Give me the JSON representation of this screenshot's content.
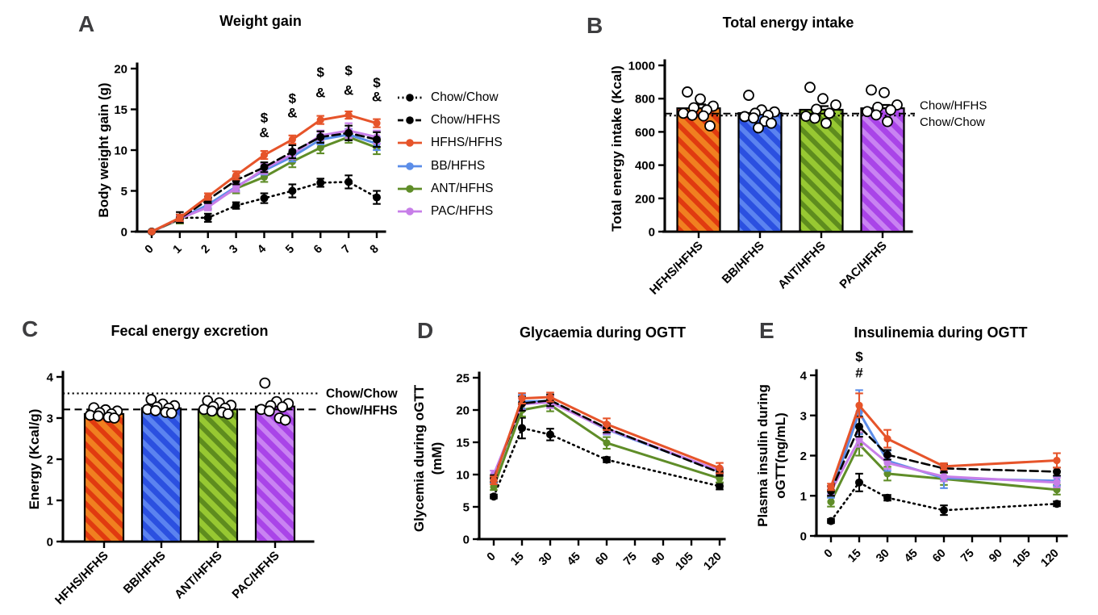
{
  "panel_letters": [
    "A",
    "B",
    "C",
    "D",
    "E"
  ],
  "colors": {
    "black": "#000000",
    "hfhs_orange": "#E6542A",
    "bb_blue": "#5B8DE8",
    "ant_green": "#5F8D28",
    "pac_purple": "#C77EE8"
  },
  "legend": {
    "position": "right",
    "items": [
      "Chow/Chow",
      "Chow/HFHS",
      "HFHS/HFHS",
      "BB/HFHS",
      "ANT/HFHS",
      "PAC/HFHS"
    ]
  },
  "chart_data": [
    {
      "id": "A",
      "type": "line",
      "title": "Weight gain",
      "ylabel": "Body weight gain (g)",
      "ylim": [
        0,
        20
      ],
      "yticks": [
        0,
        5,
        10,
        15,
        20
      ],
      "x": [
        0,
        1,
        2,
        3,
        4,
        5,
        6,
        7,
        8
      ],
      "xticks": [
        0,
        1,
        2,
        3,
        4,
        5,
        6,
        7,
        8
      ],
      "draw_order": [
        0,
        4,
        3,
        5,
        1,
        2
      ],
      "series": [
        {
          "name": "Chow/Chow",
          "color": "#000000",
          "dash": "dotted",
          "values": [
            0,
            1.7,
            1.7,
            3.2,
            4.1,
            5.0,
            6.0,
            6.1,
            4.2
          ],
          "err": [
            0.1,
            0.7,
            0.5,
            0.4,
            0.6,
            0.8,
            0.5,
            0.8,
            0.8
          ]
        },
        {
          "name": "Chow/HFHS",
          "color": "#000000",
          "dash": "dashed",
          "values": [
            0,
            1.6,
            3.9,
            6.3,
            7.9,
            9.8,
            11.6,
            12.1,
            11.3
          ],
          "err": [
            0.1,
            0.5,
            0.4,
            0.5,
            0.6,
            0.8,
            0.7,
            0.9,
            0.9
          ]
        },
        {
          "name": "HFHS/HFHS",
          "color": "#E6542A",
          "dash": "solid",
          "values": [
            0,
            1.7,
            4.3,
            6.9,
            9.4,
            11.3,
            13.7,
            14.3,
            13.3
          ],
          "err": [
            0.1,
            0.4,
            0.4,
            0.5,
            0.5,
            0.5,
            0.5,
            0.45,
            0.5
          ]
        },
        {
          "name": "BB/HFHS",
          "color": "#5B8DE8",
          "dash": "solid",
          "values": [
            0,
            1.6,
            3.3,
            5.5,
            7.5,
            9.2,
            11.3,
            11.9,
            10.8
          ],
          "err": [
            0.1,
            0.4,
            0.4,
            0.5,
            0.5,
            0.6,
            0.6,
            0.7,
            0.8
          ]
        },
        {
          "name": "ANT/HFHS",
          "color": "#5F8D28",
          "dash": "solid",
          "values": [
            0,
            1.5,
            3.2,
            5.3,
            6.7,
            8.6,
            10.3,
            11.6,
            10.3
          ],
          "err": [
            0.1,
            0.5,
            0.4,
            0.6,
            0.6,
            0.7,
            0.7,
            0.7,
            0.8
          ]
        },
        {
          "name": "PAC/HFHS",
          "color": "#C77EE8",
          "dash": "solid",
          "values": [
            0,
            1.6,
            3.0,
            5.4,
            7.7,
            9.5,
            11.8,
            12.4,
            11.6
          ],
          "err": [
            0.1,
            0.4,
            0.4,
            0.5,
            0.6,
            0.6,
            0.6,
            0.9,
            0.8
          ]
        }
      ],
      "annotations": [
        {
          "x": 4,
          "y": 13.4,
          "text": "$"
        },
        {
          "x": 4,
          "y": 11.6,
          "text": "&"
        },
        {
          "x": 5,
          "y": 15.8,
          "text": "$"
        },
        {
          "x": 5,
          "y": 14.0,
          "text": "&"
        },
        {
          "x": 6,
          "y": 19.0,
          "text": "$"
        },
        {
          "x": 6,
          "y": 16.5,
          "text": "&"
        },
        {
          "x": 7,
          "y": 19.2,
          "text": "$"
        },
        {
          "x": 7,
          "y": 16.8,
          "text": "&"
        },
        {
          "x": 8,
          "y": 17.7,
          "text": "$"
        },
        {
          "x": 8,
          "y": 16.0,
          "text": "&"
        }
      ]
    },
    {
      "id": "B",
      "type": "bar",
      "title": "Total energy intake",
      "ylabel": "Total energy intake (Kcal)",
      "ylim": [
        0,
        1000
      ],
      "yticks": [
        0,
        200,
        400,
        600,
        800,
        1000
      ],
      "categories": [
        "HFHS/HFHS",
        "BB/HFHS",
        "ANT/HFHS",
        "PAC/HFHS"
      ],
      "values": [
        742,
        713,
        733,
        742
      ],
      "errors": [
        23,
        13,
        22,
        20
      ],
      "bar_colors": [
        {
          "base": "#F08020",
          "stripe": "#E03A10"
        },
        {
          "base": "#2B50E0",
          "stripe": "#5B83F0"
        },
        {
          "base": "#97C832",
          "stripe": "#5E8C1E"
        },
        {
          "base": "#A944E8",
          "stripe": "#C983F2"
        }
      ],
      "scatter": [
        [
          840,
          798,
          755,
          745,
          732,
          712,
          700,
          696,
          636
        ],
        [
          820,
          732,
          720,
          712,
          700,
          692,
          684,
          664,
          652,
          624
        ],
        [
          868,
          800,
          762,
          736,
          712,
          694,
          682,
          652
        ],
        [
          852,
          836,
          762,
          748,
          732,
          722,
          702,
          662
        ]
      ],
      "ref_lines": [
        {
          "label": "Chow/HFHS",
          "value": 710,
          "style": "dashed",
          "label_dy": -5
        },
        {
          "label": "Chow/Chow",
          "value": 698,
          "style": "dotted",
          "label_dy": 13
        }
      ],
      "ref_label_bold": false
    },
    {
      "id": "C",
      "type": "bar",
      "title": "Fecal energy excretion",
      "ylabel": "Energy (Kcal/g)",
      "ylim": [
        0,
        4
      ],
      "yticks": [
        0,
        1,
        2,
        3,
        4
      ],
      "categories": [
        "HFHS/HFHS",
        "BB/HFHS",
        "ANT/HFHS",
        "PAC/HFHS"
      ],
      "values": [
        3.1,
        3.24,
        3.21,
        3.28
      ],
      "errors": [
        0.03,
        0.04,
        0.05,
        0.07
      ],
      "bar_colors": [
        {
          "base": "#F08020",
          "stripe": "#E03A10"
        },
        {
          "base": "#2B50E0",
          "stripe": "#5B83F0"
        },
        {
          "base": "#97C832",
          "stripe": "#5E8C1E"
        },
        {
          "base": "#A944E8",
          "stripe": "#C983F2"
        }
      ],
      "scatter": [
        [
          3.25,
          3.2,
          3.17,
          3.13,
          3.1,
          3.07,
          3.05,
          3.02,
          3.0
        ],
        [
          3.45,
          3.34,
          3.3,
          3.27,
          3.24,
          3.21,
          3.18,
          3.14,
          3.12
        ],
        [
          3.42,
          3.37,
          3.31,
          3.28,
          3.24,
          3.21,
          3.17,
          3.14,
          3.1
        ],
        [
          3.85,
          3.4,
          3.35,
          3.3,
          3.27,
          3.21,
          3.17,
          3.0,
          2.95
        ]
      ],
      "ref_lines": [
        {
          "label": "Chow/Chow",
          "value": 3.6,
          "style": "dotted",
          "label_dy": 5
        },
        {
          "label": "Chow/HFHS",
          "value": 3.21,
          "style": "dashed",
          "label_dy": 6
        }
      ],
      "ref_label_bold": true
    },
    {
      "id": "D",
      "type": "line",
      "title": "Glycaemia during OGTT",
      "ylabel": [
        "Glycemia during oGTT",
        "(mM)"
      ],
      "ylim": [
        0,
        25
      ],
      "yticks": [
        0,
        5,
        10,
        15,
        20,
        25
      ],
      "x": [
        0,
        15,
        30,
        60,
        120
      ],
      "xticks": [
        0,
        15,
        30,
        45,
        60,
        75,
        90,
        105,
        120
      ],
      "draw_order": [
        0,
        4,
        3,
        5,
        1,
        2
      ],
      "series": [
        {
          "name": "Chow/Chow",
          "color": "#000000",
          "dash": "dotted",
          "values": [
            6.6,
            17.2,
            16.2,
            12.3,
            8.2
          ],
          "err": [
            0.3,
            1.6,
            0.9,
            0.4,
            0.5
          ]
        },
        {
          "name": "Chow/HFHS",
          "color": "#000000",
          "dash": "dashed",
          "values": [
            9.4,
            21.0,
            21.5,
            17.2,
            10.3
          ],
          "err": [
            0.5,
            1.1,
            0.9,
            0.7,
            0.5
          ]
        },
        {
          "name": "HFHS/HFHS",
          "color": "#E6542A",
          "dash": "solid",
          "values": [
            9.1,
            21.8,
            22.0,
            17.8,
            11.0
          ],
          "err": [
            0.6,
            0.8,
            0.7,
            0.9,
            0.8
          ]
        },
        {
          "name": "BB/HFHS",
          "color": "#5B8DE8",
          "dash": "solid",
          "values": [
            9.2,
            21.3,
            21.4,
            17.0,
            10.5
          ],
          "err": [
            0.5,
            1.1,
            0.8,
            0.8,
            0.5
          ]
        },
        {
          "name": "ANT/HFHS",
          "color": "#5F8D28",
          "dash": "solid",
          "values": [
            8.1,
            20.0,
            20.8,
            14.9,
            9.4
          ],
          "err": [
            0.5,
            1.0,
            1.0,
            0.9,
            0.6
          ]
        },
        {
          "name": "PAC/HFHS",
          "color": "#C77EE8",
          "dash": "solid",
          "values": [
            10.0,
            20.9,
            21.2,
            17.1,
            10.6
          ],
          "err": [
            0.6,
            0.9,
            0.9,
            0.8,
            0.5
          ]
        }
      ],
      "annotations": []
    },
    {
      "id": "E",
      "type": "line",
      "title": "Insulinemia during OGTT",
      "ylabel": [
        "Plasma insulin during",
        "oGTT(ng/mL)"
      ],
      "ylim": [
        0,
        4
      ],
      "yticks": [
        0,
        1,
        2,
        3,
        4
      ],
      "x": [
        0,
        15,
        30,
        60,
        120
      ],
      "xticks": [
        0,
        15,
        30,
        45,
        60,
        75,
        90,
        105,
        120
      ],
      "draw_order": [
        0,
        4,
        3,
        5,
        1,
        2
      ],
      "series": [
        {
          "name": "Chow/Chow",
          "color": "#000000",
          "dash": "dotted",
          "values": [
            0.37,
            1.33,
            0.95,
            0.64,
            0.8
          ],
          "err": [
            0.05,
            0.22,
            0.07,
            0.12,
            0.06
          ]
        },
        {
          "name": "Chow/HFHS",
          "color": "#000000",
          "dash": "dashed",
          "values": [
            1.12,
            2.72,
            2.02,
            1.68,
            1.6
          ],
          "err": [
            0.12,
            0.25,
            0.12,
            0.1,
            0.1
          ]
        },
        {
          "name": "HFHS/HFHS",
          "color": "#E6542A",
          "dash": "solid",
          "values": [
            1.22,
            3.25,
            2.42,
            1.73,
            1.88
          ],
          "err": [
            0.08,
            0.3,
            0.22,
            0.08,
            0.18
          ]
        },
        {
          "name": "BB/HFHS",
          "color": "#5B8DE8",
          "dash": "solid",
          "values": [
            1.05,
            3.08,
            1.87,
            1.44,
            1.37
          ],
          "err": [
            0.1,
            0.55,
            0.25,
            0.25,
            0.12
          ]
        },
        {
          "name": "ANT/HFHS",
          "color": "#5F8D28",
          "dash": "solid",
          "values": [
            0.85,
            2.28,
            1.55,
            1.42,
            1.15
          ],
          "err": [
            0.12,
            0.28,
            0.17,
            0.15,
            0.12
          ]
        },
        {
          "name": "PAC/HFHS",
          "color": "#C77EE8",
          "dash": "solid",
          "values": [
            1.12,
            2.4,
            1.82,
            1.48,
            1.33
          ],
          "err": [
            0.1,
            0.18,
            0.15,
            0.12,
            0.12
          ]
        }
      ],
      "annotations": [
        {
          "x": 15,
          "y": 4.35,
          "text": "$"
        },
        {
          "x": 15,
          "y": 3.95,
          "text": "#"
        }
      ]
    }
  ]
}
